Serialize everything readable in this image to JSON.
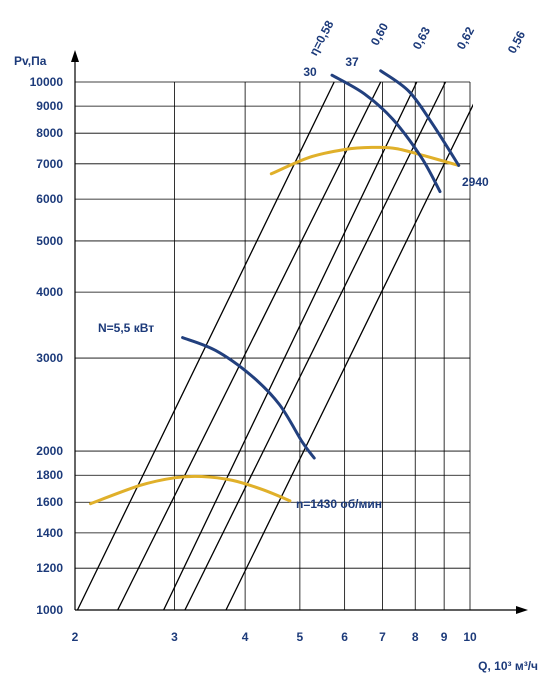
{
  "colors": {
    "axis": "#000000",
    "grid": "#000000",
    "label": "#1c3a7a",
    "power_curve": "#22407e",
    "pressure_curve": "#e0b02a",
    "efficiency_line": "#000000"
  },
  "chart_data": {
    "type": "line",
    "xscale": "log",
    "yscale": "log",
    "xlabel": "Q, 10³ м³/ч",
    "ylabel": "Pv,Па",
    "xlim": [
      2,
      10
    ],
    "ylim": [
      1000,
      10000
    ],
    "grid": true,
    "x_ticks": [
      2,
      3,
      4,
      5,
      6,
      7,
      8,
      9,
      10
    ],
    "x_tick_labels": [
      "2",
      "3",
      "4",
      "5",
      "6",
      "7",
      "8",
      "9",
      "10"
    ],
    "y_ticks": [
      1000,
      1200,
      1400,
      1600,
      1800,
      2000,
      3000,
      4000,
      5000,
      6000,
      7000,
      8000,
      9000,
      10000
    ],
    "y_tick_labels": [
      "1000",
      "1200",
      "1400",
      "1600",
      "1800",
      "2000",
      "3000",
      "4000",
      "5000",
      "6000",
      "7000",
      "8000",
      "9000",
      "10000"
    ],
    "efficiency_lines": [
      {
        "label": "η=0,58",
        "points": [
          [
            2.02,
            1000
          ],
          [
            5.75,
            10000
          ]
        ]
      },
      {
        "label": "0,60",
        "points": [
          [
            2.38,
            1000
          ],
          [
            6.95,
            10000
          ]
        ]
      },
      {
        "label": "0,63",
        "points": [
          [
            2.87,
            1000
          ],
          [
            8.05,
            10000
          ]
        ]
      },
      {
        "label": "0,62",
        "points": [
          [
            3.13,
            1000
          ],
          [
            9.05,
            10000
          ]
        ]
      },
      {
        "label": "0,56",
        "points": [
          [
            3.7,
            1000
          ],
          [
            10.6,
            10000
          ]
        ]
      }
    ],
    "pressure_curves": [
      {
        "speed_label": "n=1430 об/мин",
        "points": [
          [
            2.13,
            1590
          ],
          [
            2.6,
            1720
          ],
          [
            3.0,
            1780
          ],
          [
            3.35,
            1790
          ],
          [
            3.8,
            1760
          ],
          [
            4.3,
            1690
          ],
          [
            4.8,
            1610
          ]
        ]
      },
      {
        "speed_label": "2940",
        "points": [
          [
            4.45,
            6700
          ],
          [
            5.2,
            7200
          ],
          [
            6.0,
            7450
          ],
          [
            6.7,
            7520
          ],
          [
            7.4,
            7480
          ],
          [
            8.3,
            7250
          ],
          [
            9.55,
            6950
          ]
        ]
      }
    ],
    "power_curves": [
      {
        "label": "N=5,5 кВт",
        "points": [
          [
            3.1,
            3280
          ],
          [
            3.55,
            3100
          ],
          [
            4.1,
            2780
          ],
          [
            4.6,
            2450
          ],
          [
            5.05,
            2080
          ],
          [
            5.3,
            1940
          ]
        ]
      },
      {
        "label": "30",
        "points": [
          [
            5.7,
            10300
          ],
          [
            6.5,
            9500
          ],
          [
            7.3,
            8500
          ],
          [
            8.2,
            7200
          ],
          [
            8.85,
            6200
          ]
        ]
      },
      {
        "label": "37",
        "points": [
          [
            6.95,
            10500
          ],
          [
            7.8,
            9600
          ],
          [
            8.6,
            8300
          ],
          [
            9.55,
            6950
          ]
        ]
      }
    ]
  }
}
